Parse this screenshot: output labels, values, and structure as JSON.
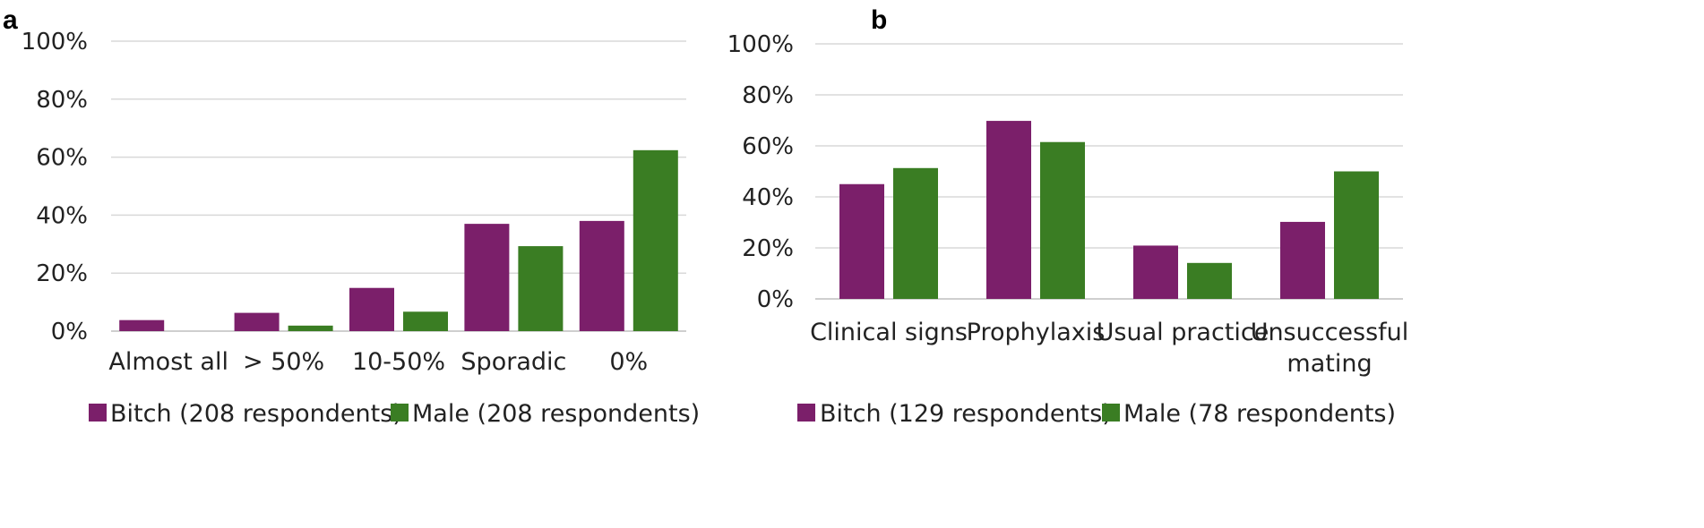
{
  "colors": {
    "bitch": "#7b1f6a",
    "male": "#3a7d23"
  },
  "chart_data": [
    {
      "panel": "a",
      "type": "bar",
      "categories": [
        "Almost all",
        "> 50%",
        "10-50%",
        "Sporadic",
        "0%"
      ],
      "series": [
        {
          "name": "Bitch (208 respondents)",
          "values": [
            3.8,
            6.3,
            14.9,
            37.0,
            38.0
          ]
        },
        {
          "name": "Male (208 respondents)",
          "values": [
            0,
            1.9,
            6.7,
            29.3,
            62.4
          ]
        }
      ],
      "yticks": [
        "0%",
        "20%",
        "40%",
        "60%",
        "80%",
        "100%"
      ],
      "ylim": [
        0,
        100
      ],
      "legend": "bottom"
    },
    {
      "panel": "b",
      "type": "bar",
      "categories": [
        "Clinical signs",
        "Prophylaxis",
        "Usual practice",
        "Unsuccessful mating"
      ],
      "series": [
        {
          "name": "Bitch (129 respondents)",
          "values": [
            45.0,
            69.8,
            20.9,
            30.2
          ]
        },
        {
          "name": "Male (78 respondents)",
          "values": [
            51.3,
            61.5,
            14.1,
            50.0
          ]
        }
      ],
      "yticks": [
        "0%",
        "20%",
        "40%",
        "60%",
        "80%",
        "100%"
      ],
      "ylim": [
        0,
        100
      ],
      "legend": "bottom"
    }
  ]
}
